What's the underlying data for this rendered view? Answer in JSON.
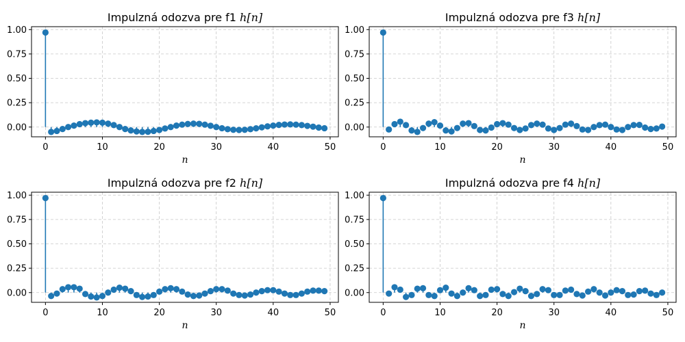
{
  "style": {
    "marker_color": "#1f77b4"
  },
  "chart_data": [
    {
      "type": "stem",
      "title": "Impulzná odozva pre f1 ",
      "title_math": "h[n]",
      "xlabel": "n",
      "ylabel": "",
      "xlim": [
        -2.45,
        51.45
      ],
      "ylim": [
        -0.1,
        1.03
      ],
      "xticks": [
        "0",
        "10",
        "20",
        "30",
        "40",
        "50"
      ],
      "yticks": [
        "0.00",
        "0.25",
        "0.50",
        "0.75",
        "1.00"
      ],
      "grid": true,
      "x": [
        0,
        1,
        2,
        3,
        4,
        5,
        6,
        7,
        8,
        9,
        10,
        11,
        12,
        13,
        14,
        15,
        16,
        17,
        18,
        19,
        20,
        21,
        22,
        23,
        24,
        25,
        26,
        27,
        28,
        29,
        30,
        31,
        32,
        33,
        34,
        35,
        36,
        37,
        38,
        39,
        40,
        41,
        42,
        43,
        44,
        45,
        46,
        47,
        48,
        49
      ],
      "values": [
        0.97,
        -0.05,
        -0.04,
        -0.02,
        0.0,
        0.015,
        0.03,
        0.04,
        0.045,
        0.048,
        0.045,
        0.035,
        0.02,
        0.0,
        -0.02,
        -0.035,
        -0.045,
        -0.05,
        -0.048,
        -0.04,
        -0.03,
        -0.015,
        0.0,
        0.015,
        0.025,
        0.032,
        0.035,
        0.033,
        0.025,
        0.013,
        0.0,
        -0.012,
        -0.022,
        -0.028,
        -0.03,
        -0.028,
        -0.022,
        -0.013,
        -0.003,
        0.007,
        0.015,
        0.022,
        0.026,
        0.027,
        0.025,
        0.02,
        0.012,
        0.004,
        -0.005,
        -0.012
      ]
    },
    {
      "type": "stem",
      "title": "Impulzná odozva pre f3 ",
      "title_math": "h[n]",
      "xlabel": "n",
      "ylabel": "",
      "xlim": [
        -2.45,
        51.45
      ],
      "ylim": [
        -0.1,
        1.03
      ],
      "xticks": [
        "0",
        "10",
        "20",
        "30",
        "40",
        "50"
      ],
      "yticks": [
        "0.00",
        "0.25",
        "0.50",
        "0.75",
        "1.00"
      ],
      "grid": true,
      "x": [
        0,
        1,
        2,
        3,
        4,
        5,
        6,
        7,
        8,
        9,
        10,
        11,
        12,
        13,
        14,
        15,
        16,
        17,
        18,
        19,
        20,
        21,
        22,
        23,
        24,
        25,
        26,
        27,
        28,
        29,
        30,
        31,
        32,
        33,
        34,
        35,
        36,
        37,
        38,
        39,
        40,
        41,
        42,
        43,
        44,
        45,
        46,
        47,
        48,
        49
      ],
      "values": [
        0.97,
        -0.025,
        0.03,
        0.055,
        0.02,
        -0.035,
        -0.05,
        -0.01,
        0.035,
        0.05,
        0.015,
        -0.035,
        -0.045,
        -0.01,
        0.035,
        0.04,
        0.01,
        -0.03,
        -0.035,
        -0.005,
        0.03,
        0.04,
        0.025,
        -0.01,
        -0.03,
        -0.015,
        0.02,
        0.035,
        0.025,
        -0.015,
        -0.03,
        -0.01,
        0.025,
        0.035,
        0.01,
        -0.025,
        -0.03,
        0.0,
        0.02,
        0.025,
        0.0,
        -0.025,
        -0.03,
        0.0,
        0.02,
        0.022,
        -0.005,
        -0.02,
        -0.015,
        0.005
      ]
    },
    {
      "type": "stem",
      "title": "Impulzná odozva pre f2 ",
      "title_math": "h[n]",
      "xlabel": "n",
      "ylabel": "",
      "xlim": [
        -2.45,
        51.45
      ],
      "ylim": [
        -0.1,
        1.03
      ],
      "xticks": [
        "0",
        "10",
        "20",
        "30",
        "40",
        "50"
      ],
      "yticks": [
        "0.00",
        "0.25",
        "0.50",
        "0.75",
        "1.00"
      ],
      "grid": true,
      "x": [
        0,
        1,
        2,
        3,
        4,
        5,
        6,
        7,
        8,
        9,
        10,
        11,
        12,
        13,
        14,
        15,
        16,
        17,
        18,
        19,
        20,
        21,
        22,
        23,
        24,
        25,
        26,
        27,
        28,
        29,
        30,
        31,
        32,
        33,
        34,
        35,
        36,
        37,
        38,
        39,
        40,
        41,
        42,
        43,
        44,
        45,
        46,
        47,
        48,
        49
      ],
      "values": [
        0.97,
        -0.035,
        -0.01,
        0.035,
        0.055,
        0.055,
        0.04,
        -0.015,
        -0.04,
        -0.05,
        -0.035,
        0.0,
        0.03,
        0.05,
        0.04,
        0.015,
        -0.025,
        -0.045,
        -0.04,
        -0.025,
        0.01,
        0.035,
        0.045,
        0.035,
        0.01,
        -0.02,
        -0.035,
        -0.03,
        -0.01,
        0.015,
        0.035,
        0.035,
        0.02,
        -0.01,
        -0.025,
        -0.03,
        -0.02,
        0.0,
        0.015,
        0.025,
        0.025,
        0.01,
        -0.01,
        -0.025,
        -0.025,
        -0.01,
        0.01,
        0.02,
        0.02,
        0.015
      ]
    },
    {
      "type": "stem",
      "title": "Impulzná odozva pre f4 ",
      "title_math": "h[n]",
      "xlabel": "n",
      "ylabel": "",
      "xlim": [
        -2.45,
        51.45
      ],
      "ylim": [
        -0.1,
        1.03
      ],
      "xticks": [
        "0",
        "10",
        "20",
        "30",
        "40",
        "50"
      ],
      "yticks": [
        "0.00",
        "0.25",
        "0.50",
        "0.75",
        "1.00"
      ],
      "grid": true,
      "x": [
        0,
        1,
        2,
        3,
        4,
        5,
        6,
        7,
        8,
        9,
        10,
        11,
        12,
        13,
        14,
        15,
        16,
        17,
        18,
        19,
        20,
        21,
        22,
        23,
        24,
        25,
        26,
        27,
        28,
        29,
        30,
        31,
        32,
        33,
        34,
        35,
        36,
        37,
        38,
        39,
        40,
        41,
        42,
        43,
        44,
        45,
        46,
        47,
        48,
        49
      ],
      "values": [
        0.97,
        -0.01,
        0.055,
        0.03,
        -0.045,
        -0.025,
        0.04,
        0.045,
        -0.025,
        -0.035,
        0.025,
        0.05,
        -0.01,
        -0.035,
        0.0,
        0.045,
        0.025,
        -0.035,
        -0.025,
        0.03,
        0.035,
        -0.015,
        -0.035,
        0.005,
        0.04,
        0.015,
        -0.035,
        -0.015,
        0.035,
        0.025,
        -0.025,
        -0.025,
        0.02,
        0.03,
        -0.015,
        -0.03,
        0.01,
        0.035,
        0.0,
        -0.03,
        0.0,
        0.025,
        0.015,
        -0.025,
        -0.02,
        0.015,
        0.02,
        -0.01,
        -0.025,
        0.0
      ]
    }
  ]
}
